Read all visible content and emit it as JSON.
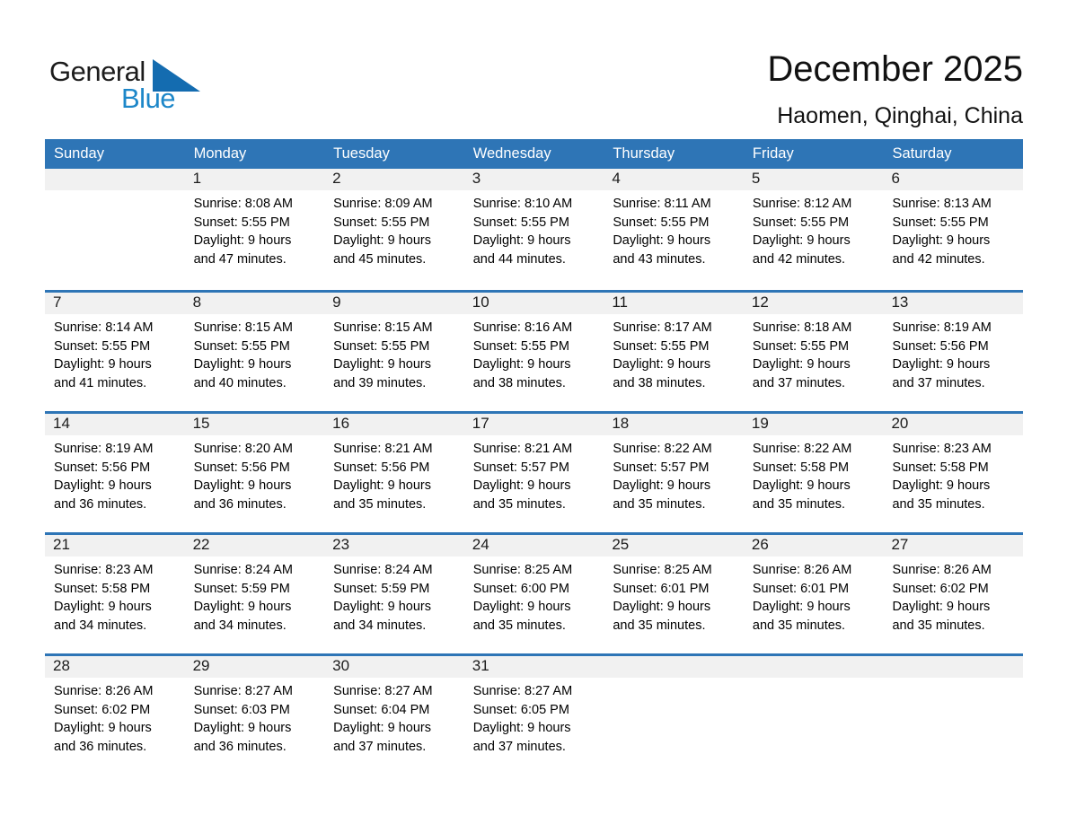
{
  "logo": {
    "text_general": "General",
    "text_blue": "Blue",
    "triangle_icon_color": "#146cb0",
    "blue_text_color": "#1d87c9"
  },
  "header": {
    "title": "December 2025",
    "subtitle": "Haomen, Qinghai, China"
  },
  "colors": {
    "weekday_header_bg": "#2e75b6",
    "week_divider_line": "#2e75b6",
    "day_number_strip_bg": "#f1f1f1",
    "weekday_header_text": "#ffffff",
    "body_text": "#000000"
  },
  "weekday_headers": [
    "Sunday",
    "Monday",
    "Tuesday",
    "Wednesday",
    "Thursday",
    "Friday",
    "Saturday"
  ],
  "weeks": [
    [
      null,
      {
        "day": "1",
        "sunrise": "Sunrise: 8:08 AM",
        "sunset": "Sunset: 5:55 PM",
        "daylight1": "Daylight: 9 hours",
        "daylight2": "and 47 minutes."
      },
      {
        "day": "2",
        "sunrise": "Sunrise: 8:09 AM",
        "sunset": "Sunset: 5:55 PM",
        "daylight1": "Daylight: 9 hours",
        "daylight2": "and 45 minutes."
      },
      {
        "day": "3",
        "sunrise": "Sunrise: 8:10 AM",
        "sunset": "Sunset: 5:55 PM",
        "daylight1": "Daylight: 9 hours",
        "daylight2": "and 44 minutes."
      },
      {
        "day": "4",
        "sunrise": "Sunrise: 8:11 AM",
        "sunset": "Sunset: 5:55 PM",
        "daylight1": "Daylight: 9 hours",
        "daylight2": "and 43 minutes."
      },
      {
        "day": "5",
        "sunrise": "Sunrise: 8:12 AM",
        "sunset": "Sunset: 5:55 PM",
        "daylight1": "Daylight: 9 hours",
        "daylight2": "and 42 minutes."
      },
      {
        "day": "6",
        "sunrise": "Sunrise: 8:13 AM",
        "sunset": "Sunset: 5:55 PM",
        "daylight1": "Daylight: 9 hours",
        "daylight2": "and 42 minutes."
      }
    ],
    [
      {
        "day": "7",
        "sunrise": "Sunrise: 8:14 AM",
        "sunset": "Sunset: 5:55 PM",
        "daylight1": "Daylight: 9 hours",
        "daylight2": "and 41 minutes."
      },
      {
        "day": "8",
        "sunrise": "Sunrise: 8:15 AM",
        "sunset": "Sunset: 5:55 PM",
        "daylight1": "Daylight: 9 hours",
        "daylight2": "and 40 minutes."
      },
      {
        "day": "9",
        "sunrise": "Sunrise: 8:15 AM",
        "sunset": "Sunset: 5:55 PM",
        "daylight1": "Daylight: 9 hours",
        "daylight2": "and 39 minutes."
      },
      {
        "day": "10",
        "sunrise": "Sunrise: 8:16 AM",
        "sunset": "Sunset: 5:55 PM",
        "daylight1": "Daylight: 9 hours",
        "daylight2": "and 38 minutes."
      },
      {
        "day": "11",
        "sunrise": "Sunrise: 8:17 AM",
        "sunset": "Sunset: 5:55 PM",
        "daylight1": "Daylight: 9 hours",
        "daylight2": "and 38 minutes."
      },
      {
        "day": "12",
        "sunrise": "Sunrise: 8:18 AM",
        "sunset": "Sunset: 5:55 PM",
        "daylight1": "Daylight: 9 hours",
        "daylight2": "and 37 minutes."
      },
      {
        "day": "13",
        "sunrise": "Sunrise: 8:19 AM",
        "sunset": "Sunset: 5:56 PM",
        "daylight1": "Daylight: 9 hours",
        "daylight2": "and 37 minutes."
      }
    ],
    [
      {
        "day": "14",
        "sunrise": "Sunrise: 8:19 AM",
        "sunset": "Sunset: 5:56 PM",
        "daylight1": "Daylight: 9 hours",
        "daylight2": "and 36 minutes."
      },
      {
        "day": "15",
        "sunrise": "Sunrise: 8:20 AM",
        "sunset": "Sunset: 5:56 PM",
        "daylight1": "Daylight: 9 hours",
        "daylight2": "and 36 minutes."
      },
      {
        "day": "16",
        "sunrise": "Sunrise: 8:21 AM",
        "sunset": "Sunset: 5:56 PM",
        "daylight1": "Daylight: 9 hours",
        "daylight2": "and 35 minutes."
      },
      {
        "day": "17",
        "sunrise": "Sunrise: 8:21 AM",
        "sunset": "Sunset: 5:57 PM",
        "daylight1": "Daylight: 9 hours",
        "daylight2": "and 35 minutes."
      },
      {
        "day": "18",
        "sunrise": "Sunrise: 8:22 AM",
        "sunset": "Sunset: 5:57 PM",
        "daylight1": "Daylight: 9 hours",
        "daylight2": "and 35 minutes."
      },
      {
        "day": "19",
        "sunrise": "Sunrise: 8:22 AM",
        "sunset": "Sunset: 5:58 PM",
        "daylight1": "Daylight: 9 hours",
        "daylight2": "and 35 minutes."
      },
      {
        "day": "20",
        "sunrise": "Sunrise: 8:23 AM",
        "sunset": "Sunset: 5:58 PM",
        "daylight1": "Daylight: 9 hours",
        "daylight2": "and 35 minutes."
      }
    ],
    [
      {
        "day": "21",
        "sunrise": "Sunrise: 8:23 AM",
        "sunset": "Sunset: 5:58 PM",
        "daylight1": "Daylight: 9 hours",
        "daylight2": "and 34 minutes."
      },
      {
        "day": "22",
        "sunrise": "Sunrise: 8:24 AM",
        "sunset": "Sunset: 5:59 PM",
        "daylight1": "Daylight: 9 hours",
        "daylight2": "and 34 minutes."
      },
      {
        "day": "23",
        "sunrise": "Sunrise: 8:24 AM",
        "sunset": "Sunset: 5:59 PM",
        "daylight1": "Daylight: 9 hours",
        "daylight2": "and 34 minutes."
      },
      {
        "day": "24",
        "sunrise": "Sunrise: 8:25 AM",
        "sunset": "Sunset: 6:00 PM",
        "daylight1": "Daylight: 9 hours",
        "daylight2": "and 35 minutes."
      },
      {
        "day": "25",
        "sunrise": "Sunrise: 8:25 AM",
        "sunset": "Sunset: 6:01 PM",
        "daylight1": "Daylight: 9 hours",
        "daylight2": "and 35 minutes."
      },
      {
        "day": "26",
        "sunrise": "Sunrise: 8:26 AM",
        "sunset": "Sunset: 6:01 PM",
        "daylight1": "Daylight: 9 hours",
        "daylight2": "and 35 minutes."
      },
      {
        "day": "27",
        "sunrise": "Sunrise: 8:26 AM",
        "sunset": "Sunset: 6:02 PM",
        "daylight1": "Daylight: 9 hours",
        "daylight2": "and 35 minutes."
      }
    ],
    [
      {
        "day": "28",
        "sunrise": "Sunrise: 8:26 AM",
        "sunset": "Sunset: 6:02 PM",
        "daylight1": "Daylight: 9 hours",
        "daylight2": "and 36 minutes."
      },
      {
        "day": "29",
        "sunrise": "Sunrise: 8:27 AM",
        "sunset": "Sunset: 6:03 PM",
        "daylight1": "Daylight: 9 hours",
        "daylight2": "and 36 minutes."
      },
      {
        "day": "30",
        "sunrise": "Sunrise: 8:27 AM",
        "sunset": "Sunset: 6:04 PM",
        "daylight1": "Daylight: 9 hours",
        "daylight2": "and 37 minutes."
      },
      {
        "day": "31",
        "sunrise": "Sunrise: 8:27 AM",
        "sunset": "Sunset: 6:05 PM",
        "daylight1": "Daylight: 9 hours",
        "daylight2": "and 37 minutes."
      },
      null,
      null,
      null
    ]
  ]
}
